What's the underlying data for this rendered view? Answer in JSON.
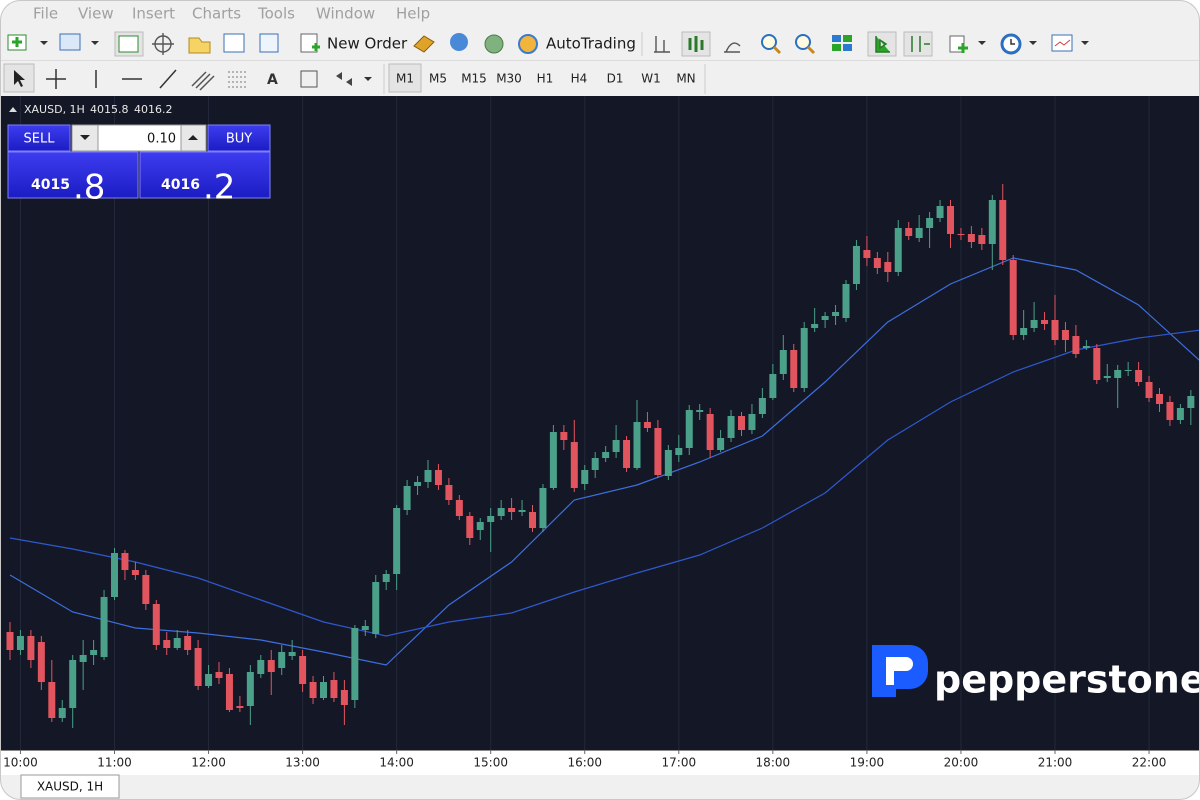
{
  "menu": [
    "File",
    "View",
    "Insert",
    "Charts",
    "Tools",
    "Window",
    "Help"
  ],
  "toolbar": {
    "new_order": "New Order",
    "auto_trading": "AutoTrading"
  },
  "timeframes": [
    "M1",
    "M5",
    "M15",
    "M30",
    "H1",
    "H4",
    "D1",
    "W1",
    "MN"
  ],
  "chart_header": {
    "symbol": "XAUSD, 1H",
    "bid": "4015.8",
    "ask": "4016.2"
  },
  "trade_panel": {
    "sell": "SELL",
    "lot": "0.10",
    "buy": "BUY",
    "sell_big": "4015",
    "sell_small": ".8",
    "buy_big": "4016",
    "buy_small": ".2"
  },
  "watermark": "pepperstone",
  "tab": "XAUSD, 1H",
  "chart_data": {
    "type": "candlestick",
    "bull_color": "#4aa088",
    "bear_color": "#e2545e",
    "ylim": [
      3980.3,
      4045.7
    ],
    "grid": true,
    "categories": [
      null,
      "10:00",
      null,
      null,
      null,
      null,
      null,
      null,
      null,
      null,
      "11:00",
      null,
      null,
      null,
      null,
      null,
      null,
      null,
      null,
      "12:00",
      null,
      null,
      null,
      null,
      null,
      null,
      null,
      null,
      "13:00",
      null,
      null,
      null,
      null,
      null,
      null,
      null,
      null,
      "14:00",
      null,
      null,
      null,
      null,
      null,
      null,
      null,
      null,
      "15:00",
      null,
      null,
      null,
      null,
      null,
      null,
      null,
      null,
      "16:00",
      null,
      null,
      null,
      null,
      null,
      null,
      null,
      null,
      "17:00",
      null,
      null,
      null,
      null,
      null,
      null,
      null,
      null,
      "18:00",
      null,
      null,
      null,
      null,
      null,
      null,
      null,
      null,
      "19:00",
      null,
      null,
      null,
      null,
      null,
      null,
      null,
      null,
      "20:00",
      null,
      null,
      null,
      null,
      null,
      null,
      null,
      null,
      "21:00",
      null,
      null,
      null,
      null,
      null,
      null,
      null,
      null,
      "22:00",
      null,
      null,
      null,
      null
    ],
    "open": [
      3992.1,
      3990.3,
      3991.7,
      3991.1,
      3987.1,
      3983.5,
      3984.5,
      3989.1,
      3989.8,
      3989.6,
      3995.6,
      4000.0,
      3998.3,
      3997.8,
      3994.9,
      3991.3,
      3990.5,
      3991.7,
      3990.5,
      3986.7,
      3988.1,
      3987.9,
      3984.7,
      3984.7,
      3987.9,
      3989.3,
      3988.5,
      3989.7,
      3989.7,
      3987.1,
      3985.5,
      3987.3,
      3986.3,
      3985.3,
      3992.3,
      3991.9,
      3997.1,
      3997.9,
      4004.3,
      4006.7,
      4007.1,
      4008.3,
      4006.8,
      4005.3,
      4003.7,
      4002.3,
      4003.1,
      4003.7,
      4004.5,
      4004.1,
      4004.1,
      4002.5,
      4006.5,
      4012.1,
      4011.1,
      4006.9,
      4008.3,
      4009.5,
      4010.1,
      4011.3,
      4008.5,
      4013.1,
      4012.5,
      4007.7,
      4009.8,
      4010.5,
      4014.1,
      4013.9,
      4010.3,
      4011.5,
      4013.7,
      4012.3,
      4013.9,
      4015.5,
      4017.9,
      4020.3,
      4016.5,
      4022.5,
      4023.3,
      4023.7,
      4023.5,
      4026.9,
      4030.3,
      4029.5,
      4029.1,
      4028.1,
      4032.5,
      4031.5,
      4032.5,
      4033.5,
      4034.7,
      4031.9,
      4031.9,
      4031.8,
      4030.9,
      4035.3,
      4029.3,
      4021.8,
      4022.5,
      4023.3,
      4023.3,
      4022.3,
      4021.7,
      4020.5,
      4020.5,
      4017.5,
      4017.5,
      4018.3,
      4018.3,
      4017.1,
      4015.9,
      4015.1,
      4013.3,
      4014.5
    ],
    "high": [
      3993.1,
      3992.3,
      3992.3,
      3991.7,
      3989.3,
      3985.3,
      3989.8,
      3991.3,
      3991.3,
      3996.3,
      4000.5,
      4000.3,
      3999.1,
      3998.3,
      3995.3,
      3992.1,
      3992.3,
      3992.3,
      3991.3,
      3988.8,
      3989.1,
      3988.5,
      3985.7,
      3988.8,
      3989.8,
      3990.3,
      3990.8,
      3991.3,
      3990.3,
      3987.7,
      3987.7,
      3988.1,
      3987.3,
      3992.8,
      3993.3,
      3997.8,
      3998.3,
      4004.8,
      4007.3,
      4007.7,
      4009.3,
      4008.9,
      4007.5,
      4005.8,
      4004.1,
      4003.5,
      4004.5,
      4005.3,
      4005.5,
      4005.3,
      4004.8,
      4006.9,
      4012.8,
      4012.8,
      4013.3,
      4008.8,
      4010.1,
      4010.7,
      4012.8,
      4011.7,
      4015.3,
      4014.1,
      4013.3,
      4010.8,
      4011.8,
      4014.8,
      4014.9,
      4014.5,
      4012.3,
      4014.3,
      4014.1,
      4014.9,
      4016.5,
      4018.9,
      4021.8,
      4020.9,
      4023.1,
      4024.5,
      4024.1,
      4024.8,
      4027.3,
      4031.3,
      4031.7,
      4030.1,
      4030.1,
      4033.3,
      4033.1,
      4033.8,
      4034.1,
      4035.3,
      4035.3,
      4032.5,
      4032.7,
      4032.5,
      4035.8,
      4036.9,
      4029.8,
      4024.3,
      4025.1,
      4024.1,
      4025.8,
      4023.1,
      4022.8,
      4021.3,
      4020.9,
      4018.9,
      4018.8,
      4019.1,
      4019.1,
      4017.7,
      4016.5,
      4015.7,
      4014.9,
      4016.3
    ],
    "low": [
      3989.3,
      3989.8,
      3988.5,
      3986.3,
      3983.1,
      3983.1,
      3982.5,
      3986.3,
      3988.8,
      3989.3,
      3995.3,
      3997.3,
      3997.3,
      3994.3,
      3990.3,
      3989.8,
      3990.3,
      3989.8,
      3986.3,
      3986.5,
      3986.9,
      3984.1,
      3984.1,
      3982.8,
      3987.5,
      3985.8,
      3987.8,
      3989.3,
      3986.1,
      3984.9,
      3985.3,
      3985.1,
      3982.8,
      3984.5,
      3991.7,
      3991.5,
      3996.3,
      3996.3,
      4003.8,
      4005.8,
      4006.5,
      4006.3,
      4004.8,
      4003.3,
      4000.8,
      4001.3,
      4000.1,
      4003.3,
      4003.3,
      4003.7,
      4002.1,
      4002.1,
      4006.3,
      4010.3,
      4006.1,
      4006.3,
      4007.5,
      4009.1,
      4009.5,
      4008.1,
      4008.3,
      4012.1,
      4007.5,
      4007.3,
      4009.1,
      4009.8,
      4013.3,
      4009.5,
      4010.1,
      4011.1,
      4011.7,
      4011.9,
      4013.5,
      4015.3,
      4017.3,
      4016.1,
      4016.1,
      4022.1,
      4022.5,
      4022.8,
      4023.1,
      4026.3,
      4028.7,
      4027.9,
      4027.1,
      4027.7,
      4031.3,
      4031.1,
      4030.5,
      4033.1,
      4030.5,
      4031.3,
      4030.5,
      4030.3,
      4028.3,
      4028.8,
      4021.3,
      4021.3,
      4022.1,
      4022.3,
      4020.8,
      4020.1,
      4019.5,
      4020.3,
      4016.9,
      4017.1,
      4014.5,
      4017.7,
      4016.7,
      4015.1,
      4014.1,
      4012.7,
      4012.9,
      4012.8
    ],
    "close": [
      3990.3,
      3991.7,
      3989.3,
      3987.1,
      3983.5,
      3984.5,
      3989.3,
      3989.8,
      3990.3,
      3995.6,
      4000.0,
      3998.3,
      3997.8,
      3994.9,
      3990.8,
      3990.5,
      3991.5,
      3990.3,
      3986.7,
      3987.9,
      3987.5,
      3984.3,
      3984.5,
      3988.1,
      3989.3,
      3988.1,
      3990.1,
      3990.1,
      3986.9,
      3985.5,
      3987.1,
      3985.5,
      3984.8,
      3992.5,
      3992.7,
      3997.1,
      3997.9,
      4004.5,
      4006.7,
      4007.1,
      4008.3,
      4006.8,
      4005.3,
      4003.7,
      4001.5,
      4003.1,
      4003.7,
      4004.5,
      4004.1,
      4004.3,
      4002.5,
      4006.5,
      4012.1,
      4011.3,
      4006.5,
      4008.3,
      4009.5,
      4010.1,
      4011.3,
      4008.5,
      4013.1,
      4012.5,
      4007.8,
      4010.3,
      4010.5,
      4014.3,
      4014.3,
      4010.3,
      4011.5,
      4013.7,
      4012.3,
      4013.9,
      4015.5,
      4017.9,
      4020.3,
      4016.5,
      4022.5,
      4022.9,
      4023.7,
      4024.1,
      4026.9,
      4030.7,
      4029.5,
      4028.5,
      4028.1,
      4032.5,
      4031.7,
      4032.5,
      4033.5,
      4034.7,
      4031.9,
      4031.8,
      4031.1,
      4030.9,
      4035.3,
      4029.3,
      4021.8,
      4022.5,
      4023.3,
      4022.9,
      4021.3,
      4021.3,
      4019.9,
      4020.7,
      4017.3,
      4017.7,
      4018.3,
      4018.3,
      4017.1,
      4015.5,
      4014.9,
      4013.3,
      4014.5,
      4015.7
    ],
    "series": [
      {
        "color": "#3d6fe0",
        "x": [
          0,
          6,
          12,
          18,
          24,
          30,
          36,
          42,
          48,
          54,
          60,
          66,
          72,
          78,
          84,
          90,
          96,
          102,
          108,
          114
        ],
        "values": [
          3997.8,
          3994.1,
          3992.5,
          3992.0,
          3991.3,
          3990.1,
          3988.8,
          3994.8,
          3999.1,
          4005.3,
          4006.8,
          4009.1,
          4011.7,
          4017.1,
          4023.1,
          4026.9,
          4029.5,
          4028.3,
          4024.8,
          4019.1
        ]
      },
      {
        "color": "#2e58cf",
        "x": [
          0,
          6,
          12,
          18,
          24,
          30,
          36,
          42,
          48,
          54,
          60,
          66,
          72,
          78,
          84,
          90,
          96,
          102,
          108,
          114
        ],
        "values": [
          4001.5,
          4000.4,
          3999.1,
          3997.5,
          3995.3,
          3993.1,
          3991.7,
          3993.1,
          3994.0,
          3996.1,
          3998.0,
          3999.8,
          4002.5,
          4006.0,
          4011.3,
          4015.1,
          4018.1,
          4020.3,
          4021.5,
          4022.3
        ]
      }
    ]
  }
}
